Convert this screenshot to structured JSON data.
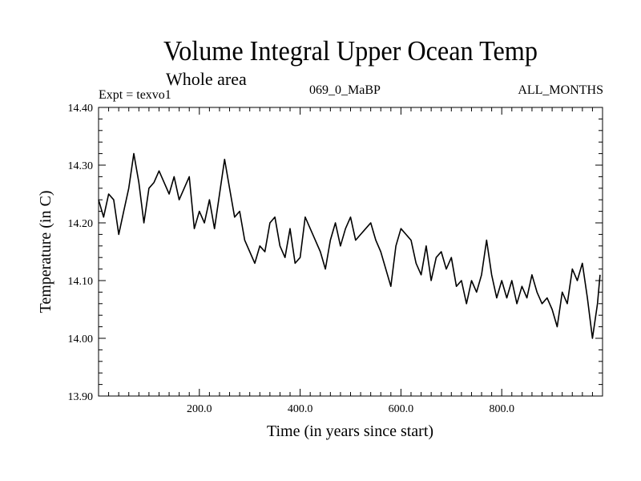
{
  "chart_data": {
    "type": "line",
    "title": "Volume Integral Upper Ocean Temp",
    "subtitle": "Whole area",
    "experiment": "Expt = texvo1",
    "run_label": "069_0_MaBP",
    "period_label": "ALL_MONTHS",
    "xlabel": "Time (in years since start)",
    "ylabel": "Temperature (in C)",
    "xlim": [
      0,
      1000
    ],
    "ylim": [
      13.9,
      14.4
    ],
    "x_ticks": [
      200,
      400,
      600,
      800
    ],
    "x_tick_labels": [
      "200.0",
      "400.0",
      "600.0",
      "800.0"
    ],
    "y_ticks": [
      13.9,
      14.0,
      14.1,
      14.2,
      14.3,
      14.4
    ],
    "y_tick_labels": [
      "13.90",
      "14.00",
      "14.10",
      "14.20",
      "14.30",
      "14.40"
    ],
    "grid": false,
    "series": [
      {
        "name": "texvo1",
        "x": [
          0,
          10,
          20,
          30,
          40,
          50,
          60,
          70,
          80,
          90,
          100,
          110,
          120,
          130,
          140,
          150,
          160,
          170,
          180,
          190,
          200,
          210,
          220,
          230,
          240,
          250,
          260,
          270,
          280,
          290,
          300,
          310,
          320,
          330,
          340,
          350,
          360,
          370,
          380,
          390,
          400,
          410,
          420,
          430,
          440,
          450,
          460,
          470,
          480,
          490,
          500,
          510,
          520,
          530,
          540,
          550,
          560,
          570,
          580,
          590,
          600,
          610,
          620,
          630,
          640,
          650,
          660,
          670,
          680,
          690,
          700,
          710,
          720,
          730,
          740,
          750,
          760,
          770,
          780,
          790,
          800,
          810,
          820,
          830,
          840,
          850,
          860,
          870,
          880,
          890,
          900,
          910,
          920,
          930,
          940,
          950,
          960,
          970,
          980,
          990,
          995
        ],
        "values": [
          14.24,
          14.21,
          14.25,
          14.24,
          14.18,
          14.22,
          14.26,
          14.32,
          14.27,
          14.2,
          14.26,
          14.27,
          14.29,
          14.27,
          14.25,
          14.28,
          14.24,
          14.26,
          14.28,
          14.19,
          14.22,
          14.2,
          14.24,
          14.19,
          14.25,
          14.31,
          14.26,
          14.21,
          14.22,
          14.17,
          14.15,
          14.13,
          14.16,
          14.15,
          14.2,
          14.21,
          14.16,
          14.14,
          14.19,
          14.13,
          14.14,
          14.21,
          14.19,
          14.17,
          14.15,
          14.12,
          14.17,
          14.2,
          14.16,
          14.19,
          14.21,
          14.17,
          14.18,
          14.19,
          14.2,
          14.17,
          14.15,
          14.12,
          14.09,
          14.16,
          14.19,
          14.18,
          14.17,
          14.13,
          14.11,
          14.16,
          14.1,
          14.14,
          14.15,
          14.12,
          14.14,
          14.09,
          14.1,
          14.06,
          14.1,
          14.08,
          14.11,
          14.17,
          14.11,
          14.07,
          14.1,
          14.07,
          14.1,
          14.06,
          14.09,
          14.07,
          14.11,
          14.08,
          14.06,
          14.07,
          14.05,
          14.02,
          14.08,
          14.06,
          14.12,
          14.1,
          14.13,
          14.07,
          14.0,
          14.06,
          14.11
        ]
      }
    ]
  }
}
